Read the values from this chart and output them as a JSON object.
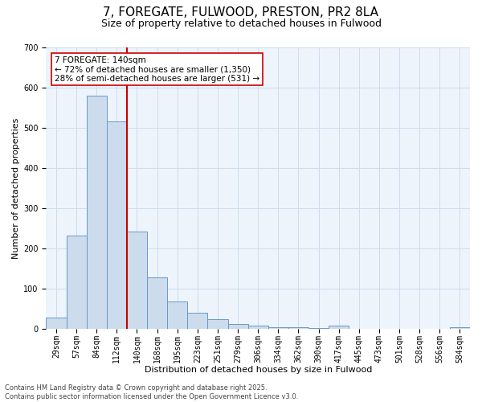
{
  "title_line1": "7, FOREGATE, FULWOOD, PRESTON, PR2 8LA",
  "title_line2": "Size of property relative to detached houses in Fulwood",
  "xlabel": "Distribution of detached houses by size in Fulwood",
  "ylabel": "Number of detached properties",
  "bar_labels": [
    "29sqm",
    "57sqm",
    "84sqm",
    "112sqm",
    "140sqm",
    "168sqm",
    "195sqm",
    "223sqm",
    "251sqm",
    "279sqm",
    "306sqm",
    "334sqm",
    "362sqm",
    "390sqm",
    "417sqm",
    "445sqm",
    "473sqm",
    "501sqm",
    "528sqm",
    "556sqm",
    "584sqm"
  ],
  "bar_values": [
    28,
    233,
    580,
    517,
    242,
    128,
    68,
    40,
    25,
    12,
    8,
    5,
    4,
    2,
    8,
    1,
    0,
    0,
    0,
    0,
    4
  ],
  "bar_color": "#ccdcec",
  "bar_edge_color": "#6699cc",
  "bar_edge_width": 0.7,
  "vline_index": 4,
  "vline_color": "#cc0000",
  "annotation_line1": "7 FOREGATE: 140sqm",
  "annotation_line2": "← 72% of detached houses are smaller (1,350)",
  "annotation_line3": "28% of semi-detached houses are larger (531) →",
  "annotation_box_color": "#ffffff",
  "annotation_box_edge": "#cc0000",
  "ylim": [
    0,
    700
  ],
  "yticks": [
    0,
    100,
    200,
    300,
    400,
    500,
    600,
    700
  ],
  "grid_color": "#ccddee",
  "bg_color": "#ffffff",
  "plot_bg_color": "#eef4fb",
  "footer_line1": "Contains HM Land Registry data © Crown copyright and database right 2025.",
  "footer_line2": "Contains public sector information licensed under the Open Government Licence v3.0.",
  "title_fontsize": 11,
  "subtitle_fontsize": 9,
  "axis_label_fontsize": 8,
  "tick_fontsize": 7,
  "annotation_fontsize": 7.5,
  "footer_fontsize": 6
}
